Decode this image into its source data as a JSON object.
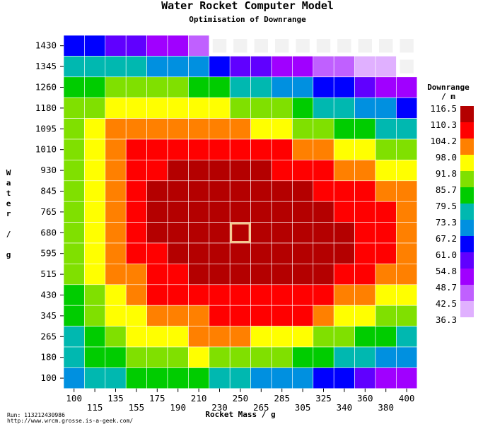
{
  "chart_data": {
    "type": "heatmap",
    "title": "Water Rocket Computer Model",
    "subtitle": "Optimisation of Downrange",
    "xlabel": "Rocket Mass / g",
    "ylabel": "Water / g",
    "x_tick_labels": [
      "100",
      "115",
      "135",
      "155",
      "175",
      "190",
      "210",
      "230",
      "250",
      "265",
      "285",
      "305",
      "325",
      "340",
      "360",
      "380",
      "400"
    ],
    "y_tick_labels": [
      "1430",
      "1345",
      "1260",
      "1180",
      "1095",
      "1010",
      "930",
      "845",
      "765",
      "680",
      "595",
      "515",
      "430",
      "345",
      "265",
      "180",
      "100"
    ],
    "legend": {
      "title_line1": "Downrange",
      "title_line2": "/ m",
      "values": [
        "116.5",
        "110.3",
        "104.2",
        "98.0",
        "91.8",
        "85.7",
        "79.5",
        "73.3",
        "67.2",
        "61.0",
        "54.8",
        "48.7",
        "42.5",
        "36.3"
      ],
      "colors": [
        "#b40000",
        "#ff0000",
        "#ff8000",
        "#ffff00",
        "#80e000",
        "#00cc00",
        "#00b8b0",
        "#0090e0",
        "#0000ff",
        "#6000ff",
        "#a000ff",
        "#c060ff",
        "#e0b0ff"
      ]
    },
    "highlight": {
      "x": "250",
      "y": "680"
    },
    "grid_levels": [
      [
        8,
        8,
        9,
        9,
        10,
        10,
        11,
        -1,
        -1,
        -1,
        -1,
        -1,
        -1,
        -1,
        -1,
        -1,
        -1
      ],
      [
        6,
        6,
        6,
        6,
        7,
        7,
        7,
        8,
        9,
        9,
        10,
        10,
        11,
        11,
        12,
        12,
        -1
      ],
      [
        5,
        5,
        4,
        4,
        4,
        4,
        5,
        5,
        6,
        6,
        7,
        7,
        8,
        8,
        9,
        10,
        10
      ],
      [
        4,
        4,
        3,
        3,
        3,
        3,
        3,
        3,
        4,
        4,
        4,
        5,
        6,
        6,
        7,
        7,
        8
      ],
      [
        4,
        3,
        2,
        2,
        2,
        2,
        2,
        2,
        2,
        3,
        3,
        4,
        4,
        5,
        5,
        6,
        6
      ],
      [
        4,
        3,
        2,
        1,
        1,
        1,
        1,
        1,
        1,
        1,
        1,
        2,
        2,
        3,
        3,
        4,
        4
      ],
      [
        4,
        3,
        2,
        1,
        1,
        0,
        0,
        0,
        0,
        0,
        1,
        1,
        1,
        2,
        2,
        3,
        3
      ],
      [
        4,
        3,
        2,
        1,
        0,
        0,
        0,
        0,
        0,
        0,
        0,
        0,
        1,
        1,
        1,
        2,
        2
      ],
      [
        4,
        3,
        2,
        1,
        0,
        0,
        0,
        0,
        0,
        0,
        0,
        0,
        0,
        1,
        1,
        1,
        2
      ],
      [
        4,
        3,
        2,
        1,
        0,
        0,
        0,
        0,
        0,
        0,
        0,
        0,
        0,
        0,
        1,
        1,
        2
      ],
      [
        4,
        3,
        2,
        1,
        1,
        0,
        0,
        0,
        0,
        0,
        0,
        0,
        0,
        0,
        1,
        1,
        2
      ],
      [
        4,
        3,
        2,
        2,
        1,
        1,
        0,
        0,
        0,
        0,
        0,
        0,
        0,
        1,
        1,
        2,
        2
      ],
      [
        5,
        4,
        3,
        2,
        1,
        1,
        1,
        1,
        1,
        1,
        1,
        1,
        1,
        2,
        2,
        3,
        3
      ],
      [
        5,
        4,
        3,
        3,
        2,
        2,
        2,
        1,
        1,
        1,
        1,
        1,
        2,
        3,
        3,
        4,
        4
      ],
      [
        6,
        5,
        4,
        3,
        3,
        3,
        2,
        2,
        2,
        3,
        3,
        3,
        4,
        4,
        5,
        5,
        6
      ],
      [
        6,
        5,
        5,
        4,
        4,
        4,
        3,
        4,
        4,
        4,
        4,
        5,
        5,
        6,
        6,
        7,
        7
      ],
      [
        7,
        6,
        6,
        5,
        5,
        5,
        5,
        6,
        6,
        7,
        7,
        7,
        8,
        8,
        9,
        10,
        10
      ]
    ]
  },
  "footer": {
    "run": "Run: 113212430986",
    "url": "http://www.wrcm.grosse.is-a-geek.com/"
  }
}
